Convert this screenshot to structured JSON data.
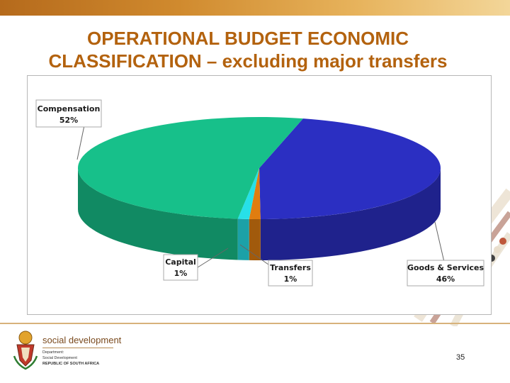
{
  "slide": {
    "title_line1": "OPERATIONAL BUDGET ECONOMIC",
    "title_line2": "CLASSIFICATION – excluding major transfers",
    "page_number": "35"
  },
  "footer": {
    "org_name": "social development",
    "line1": "Department:",
    "line2": "Social Development",
    "line3": "REPUBLIC OF SOUTH AFRICA"
  },
  "colors": {
    "title": "#b3620e",
    "compensation": "#17c08a",
    "goods_services": "#2b2fc2",
    "capital": "#27e0e8",
    "transfers": "#e07d10"
  },
  "chart_data": {
    "type": "pie",
    "title": "",
    "slices": [
      {
        "label": "Goods & Services",
        "pct_label": "46%",
        "value": 46
      },
      {
        "label": "Transfers",
        "pct_label": "1%",
        "value": 1
      },
      {
        "label": "Capital",
        "pct_label": "1%",
        "value": 1
      },
      {
        "label": "Compensation",
        "pct_label": "52%",
        "value": 52
      }
    ],
    "style": "3d",
    "legend": "none"
  }
}
